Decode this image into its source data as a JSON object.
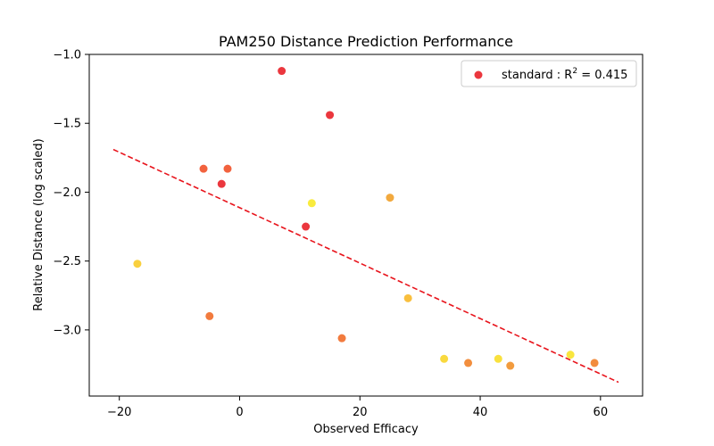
{
  "chart_data": {
    "type": "scatter",
    "title": "PAM250 Distance Prediction Performance",
    "xlabel": "Observed Efficacy",
    "ylabel": "Relative Distance (log scaled)",
    "xlim": [
      -25,
      67
    ],
    "ylim": [
      -3.48,
      -1.0
    ],
    "x_ticks": [
      -20,
      0,
      20,
      40,
      60
    ],
    "y_ticks": [
      -3.0,
      -2.5,
      -2.0,
      -1.5,
      -1.0
    ],
    "x_tick_labels": [
      "−20",
      "0",
      "20",
      "40",
      "60"
    ],
    "y_tick_labels": [
      "−3.0",
      "−2.5",
      "−2.0",
      "−1.5",
      "−1.0"
    ],
    "grid": false,
    "legend": {
      "position": "top-right",
      "entries": [
        {
          "label_prefix": "standard : R",
          "label_sup": "2",
          "label_suffix": " = 0.415",
          "color": "#e8141c"
        }
      ]
    },
    "series": [
      {
        "name": "standard : R² = 0.415",
        "points": [
          {
            "x": 7,
            "y": -1.12,
            "color": "#e8141c"
          },
          {
            "x": 15,
            "y": -1.44,
            "color": "#e8141c"
          },
          {
            "x": -6,
            "y": -1.83,
            "color": "#f0461c"
          },
          {
            "x": -2,
            "y": -1.83,
            "color": "#f0461c"
          },
          {
            "x": -3,
            "y": -1.94,
            "color": "#e8141c"
          },
          {
            "x": 12,
            "y": -2.08,
            "color": "#f8e81c"
          },
          {
            "x": 25,
            "y": -2.04,
            "color": "#f09a1c"
          },
          {
            "x": 11,
            "y": -2.25,
            "color": "#e8141c"
          },
          {
            "x": -17,
            "y": -2.52,
            "color": "#f8c81c"
          },
          {
            "x": -5,
            "y": -2.9,
            "color": "#f0641c"
          },
          {
            "x": 28,
            "y": -2.77,
            "color": "#f8b41c"
          },
          {
            "x": 17,
            "y": -3.06,
            "color": "#f0641c"
          },
          {
            "x": 34,
            "y": -3.21,
            "color": "#f8d21c"
          },
          {
            "x": 38,
            "y": -3.24,
            "color": "#f07a1c"
          },
          {
            "x": 43,
            "y": -3.21,
            "color": "#f8dc1c"
          },
          {
            "x": 45,
            "y": -3.26,
            "color": "#f08a1c"
          },
          {
            "x": 55,
            "y": -3.18,
            "color": "#f8e21c"
          },
          {
            "x": 59,
            "y": -3.24,
            "color": "#f0781c"
          }
        ]
      }
    ],
    "trendline": {
      "style": "dashed",
      "color": "#e8141c",
      "x": [
        -21,
        63
      ],
      "y": [
        -1.69,
        -3.38
      ]
    }
  }
}
